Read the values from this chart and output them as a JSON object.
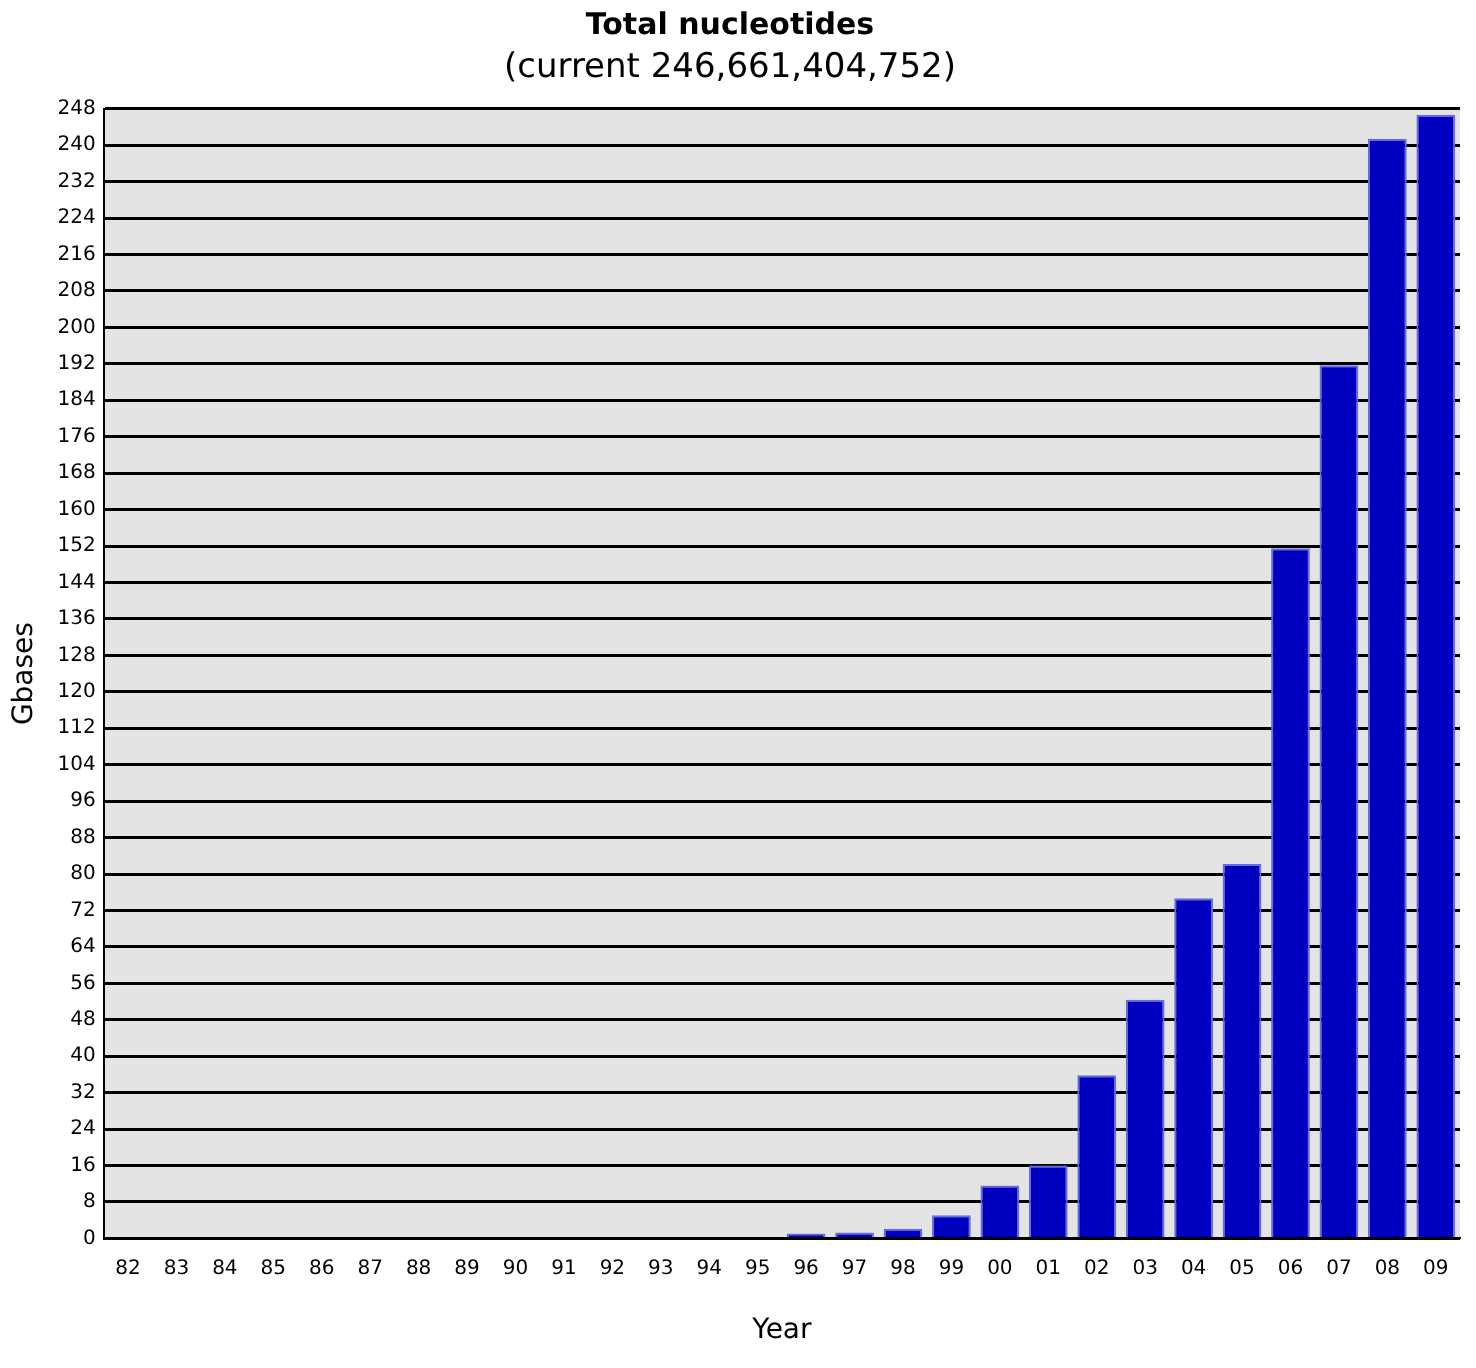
{
  "chart_data": {
    "type": "bar",
    "title": "Total nucleotides",
    "subtitle": "(current 246,661,404,752)",
    "xlabel": "Year",
    "ylabel": "Gbases",
    "categories": [
      "82",
      "83",
      "84",
      "85",
      "86",
      "87",
      "88",
      "89",
      "90",
      "91",
      "92",
      "93",
      "94",
      "95",
      "96",
      "97",
      "98",
      "99",
      "00",
      "01",
      "02",
      "03",
      "04",
      "05",
      "06",
      "07",
      "08",
      "09"
    ],
    "values": [
      0,
      0,
      0,
      0,
      0,
      0,
      0,
      0,
      0,
      0,
      0,
      0,
      0,
      0,
      1.1,
      1.3,
      2.1,
      5.1,
      11.6,
      16,
      35.8,
      52.4,
      74.7,
      82.2,
      151.5,
      191.7,
      241.4,
      246.7
    ],
    "color": "#0000c0",
    "ylim": [
      0,
      248
    ],
    "yticks": [
      0,
      8,
      16,
      24,
      32,
      40,
      48,
      56,
      64,
      72,
      80,
      88,
      96,
      104,
      112,
      120,
      128,
      136,
      144,
      152,
      160,
      168,
      176,
      184,
      192,
      200,
      208,
      216,
      224,
      232,
      240,
      248
    ],
    "grid": "y",
    "legend": false
  }
}
